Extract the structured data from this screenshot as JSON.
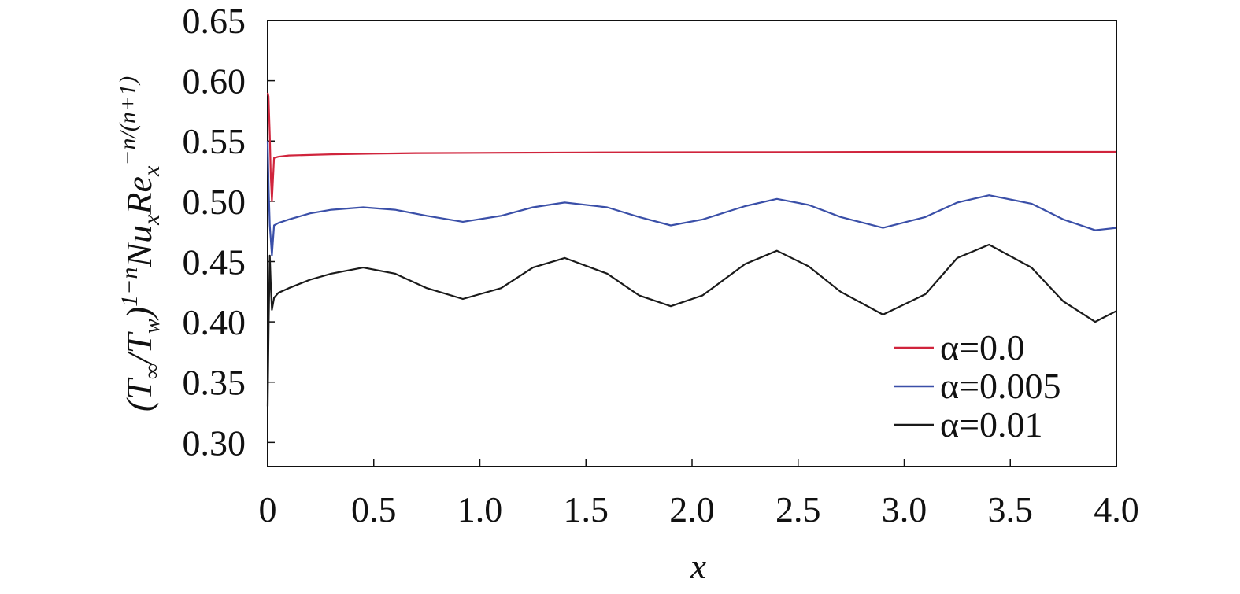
{
  "chart_data": {
    "type": "line",
    "title": "",
    "xlabel": "x",
    "ylabel": "(T∞/Tw)1−nNuxRex−n/(n+1)",
    "xlim": [
      0,
      4.0
    ],
    "ylim": [
      0.28,
      0.65
    ],
    "x_ticks": [
      "0",
      "0.5",
      "1.0",
      "1.5",
      "2.0",
      "2.5",
      "3.0",
      "3.5",
      "4.0"
    ],
    "y_ticks": [
      "0.30",
      "0.35",
      "0.40",
      "0.45",
      "0.50",
      "0.55",
      "0.60",
      "0.65"
    ],
    "grid": false,
    "legend_position": "bottom-right",
    "series": [
      {
        "name": "α=0.0",
        "color": "#d0243c",
        "x": [
          0,
          0.004,
          0.01,
          0.015,
          0.02,
          0.03,
          0.05,
          0.1,
          0.2,
          0.3,
          0.5,
          0.7,
          1.0,
          1.5,
          2.0,
          2.5,
          3.0,
          3.5,
          4.0
        ],
        "y": [
          0.59,
          0.587,
          0.555,
          0.52,
          0.5,
          0.536,
          0.537,
          0.538,
          0.5385,
          0.539,
          0.5395,
          0.54,
          0.5402,
          0.5405,
          0.5407,
          0.5408,
          0.541,
          0.541,
          0.541
        ]
      },
      {
        "name": "α=0.005",
        "color": "#3a4fa8",
        "x": [
          0,
          0.005,
          0.01,
          0.02,
          0.03,
          0.05,
          0.1,
          0.2,
          0.3,
          0.45,
          0.6,
          0.75,
          0.92,
          1.1,
          1.25,
          1.4,
          1.6,
          1.75,
          1.9,
          2.05,
          2.25,
          2.4,
          2.55,
          2.7,
          2.9,
          3.1,
          3.25,
          3.4,
          3.6,
          3.75,
          3.9,
          4.0
        ],
        "y": [
          0.55,
          0.51,
          0.48,
          0.455,
          0.48,
          0.482,
          0.485,
          0.49,
          0.493,
          0.495,
          0.493,
          0.488,
          0.483,
          0.488,
          0.495,
          0.499,
          0.495,
          0.487,
          0.48,
          0.485,
          0.496,
          0.502,
          0.497,
          0.487,
          0.478,
          0.487,
          0.499,
          0.505,
          0.498,
          0.485,
          0.476,
          0.478
        ]
      },
      {
        "name": "α=0.01",
        "color": "#1a1a1a",
        "x": [
          0,
          0.005,
          0.01,
          0.015,
          0.02,
          0.03,
          0.05,
          0.1,
          0.2,
          0.3,
          0.45,
          0.6,
          0.75,
          0.92,
          1.1,
          1.25,
          1.4,
          1.6,
          1.75,
          1.9,
          2.05,
          2.25,
          2.4,
          2.55,
          2.7,
          2.9,
          3.1,
          3.25,
          3.4,
          3.6,
          3.75,
          3.9,
          4.0
        ],
        "y": [
          0.33,
          0.4,
          0.455,
          0.43,
          0.41,
          0.42,
          0.424,
          0.428,
          0.435,
          0.44,
          0.445,
          0.44,
          0.428,
          0.419,
          0.428,
          0.445,
          0.453,
          0.44,
          0.422,
          0.413,
          0.422,
          0.448,
          0.459,
          0.446,
          0.425,
          0.406,
          0.423,
          0.453,
          0.464,
          0.445,
          0.417,
          0.4,
          0.409
        ]
      }
    ]
  }
}
